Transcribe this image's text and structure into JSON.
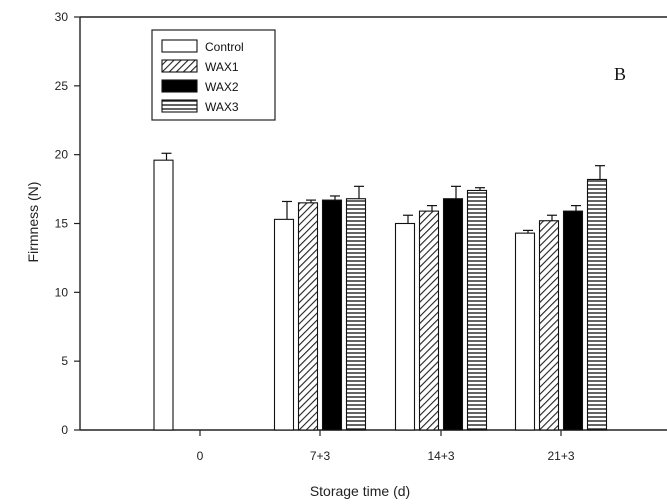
{
  "chart_data": {
    "type": "bar",
    "panel_label": "B",
    "xlabel": "Storage time (d)",
    "ylabel": "Firmness (N)",
    "ylim": [
      0,
      30
    ],
    "yticks": [
      0,
      5,
      10,
      15,
      20,
      25,
      30
    ],
    "categories": [
      "0",
      "7+3",
      "14+3",
      "21+3"
    ],
    "legend_position": "top-left",
    "grid": false,
    "series": [
      {
        "name": "Control",
        "pattern": "solid-white",
        "values": [
          19.6,
          15.3,
          15.0,
          14.3
        ],
        "errors": [
          0.5,
          1.3,
          0.6,
          0.2
        ]
      },
      {
        "name": "WAX1",
        "pattern": "diagonal-hatch",
        "values": [
          null,
          16.5,
          15.9,
          15.2
        ],
        "errors": [
          null,
          0.2,
          0.4,
          0.4
        ]
      },
      {
        "name": "WAX2",
        "pattern": "solid-black",
        "values": [
          null,
          16.7,
          16.8,
          15.9
        ],
        "errors": [
          null,
          0.3,
          0.9,
          0.4
        ]
      },
      {
        "name": "WAX3",
        "pattern": "horizontal-lines",
        "values": [
          null,
          16.8,
          17.4,
          18.2
        ],
        "errors": [
          null,
          0.9,
          0.2,
          1.0
        ]
      }
    ]
  }
}
